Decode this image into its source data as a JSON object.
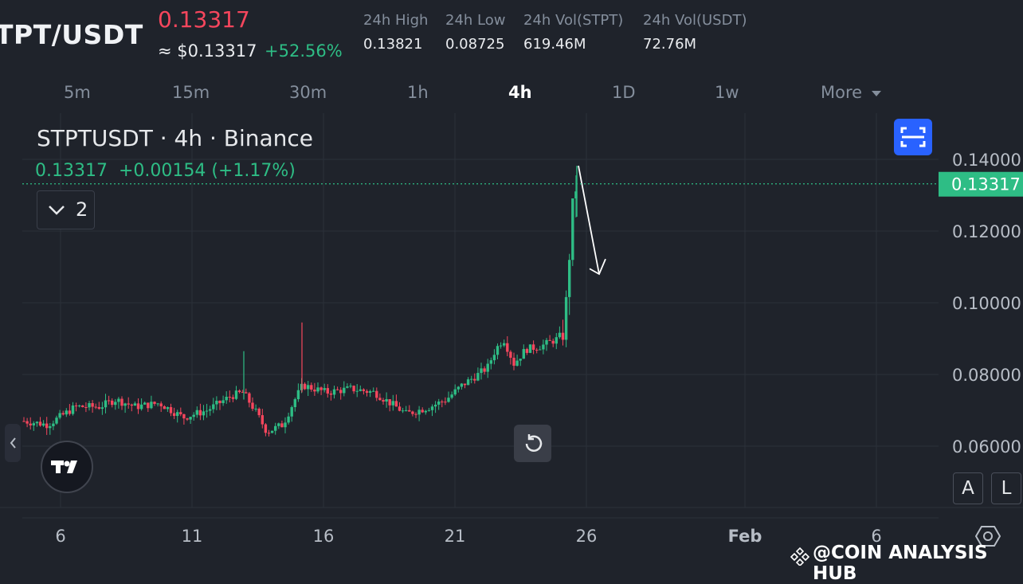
{
  "header": {
    "pair": "TPT/USDT",
    "last_price": "0.13317",
    "usd_price": "≈ $0.13317",
    "change_pct": "+52.56%",
    "stats": [
      {
        "label": "24h High",
        "value": "0.13821"
      },
      {
        "label": "24h Low",
        "value": "0.08725"
      },
      {
        "label": "24h Vol(STPT)",
        "value": "619.46M"
      },
      {
        "label": "24h Vol(USDT)",
        "value": "72.76M"
      }
    ]
  },
  "timeframes": [
    "5m",
    "15m",
    "30m",
    "1h",
    "4h",
    "1D",
    "1w",
    "More"
  ],
  "active_timeframe": "4h",
  "legend": {
    "symbol_line": "STPTUSDT · 4h · Binance",
    "value_line": "0.13317  +0.00154 (+1.17%)",
    "indicator_count": "2"
  },
  "price_axis": {
    "ticks": [
      "0.14000",
      "0.12000",
      "0.10000",
      "0.08000",
      "0.06000"
    ],
    "current_label": "0.13317"
  },
  "time_axis": {
    "ticks": [
      "6",
      "11",
      "16",
      "21",
      "26",
      "Feb",
      "6"
    ]
  },
  "buttons": {
    "auto": "A",
    "log": "L"
  },
  "watermark": "@COIN ANALYSIS HUB",
  "colors": {
    "up": "#2ebd85",
    "down": "#f6465d",
    "background": "#1f232b",
    "accent": "#2962ff"
  },
  "icons": [
    "fullscreen-icon",
    "reset-icon",
    "tradingview-logo-icon",
    "chevron-down-icon",
    "chevron-left-icon",
    "settings-icon",
    "binance-logo-icon"
  ],
  "chart_data": {
    "type": "candlestick",
    "symbol": "STPTUSDT",
    "interval": "4h",
    "y_range": [
      0.05,
      0.15
    ],
    "x_ticks": [
      "6",
      "11",
      "16",
      "21",
      "26",
      "Feb",
      "6"
    ],
    "y_ticks": [
      0.14,
      0.12,
      0.1,
      0.08,
      0.06
    ],
    "last_price": 0.13317,
    "phases": [
      {
        "from": "5",
        "to": "13",
        "approx_range": [
          0.064,
          0.078
        ]
      },
      {
        "from": "13",
        "to": "14",
        "approx_range": [
          0.063,
          0.072
        ]
      },
      {
        "from": "14",
        "to": "22",
        "approx_range": [
          0.066,
          0.082
        ]
      },
      {
        "from": "22",
        "to": "25",
        "approx_range": [
          0.08,
          0.095
        ]
      },
      {
        "from": "25",
        "to": "26",
        "approx_range": [
          0.09,
          0.138
        ]
      }
    ],
    "annotation": "downward arrow from the 0.138 high"
  }
}
